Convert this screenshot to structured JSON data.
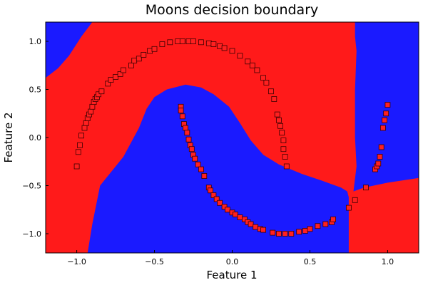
{
  "chart_data": {
    "type": "scatter",
    "title": "Moons decision boundary",
    "xlabel": "Feature 1",
    "ylabel": "Feature 2",
    "xlim": [
      -1.2,
      1.2
    ],
    "ylim": [
      -1.2,
      1.2
    ],
    "xticks": [
      -1.0,
      -0.5,
      0.0,
      0.5,
      1.0
    ],
    "yticks": [
      -1.0,
      -0.5,
      0.0,
      0.5,
      1.0
    ],
    "xtick_labels": [
      "−1.0",
      "−0.5",
      "0.0",
      "0.5",
      "1.0"
    ],
    "ytick_labels": [
      "−1.0",
      "−0.5",
      "0.0",
      "0.5",
      "1.0"
    ],
    "grid": false,
    "legend": "none",
    "region_colors": {
      "class_0": "#1a1aff",
      "class_1": "#ff1a1a"
    },
    "marker_color": "#ff2020",
    "marker_edge": "#3a0000",
    "marker_shape": "square",
    "points": [
      {
        "x": -1.0,
        "y": -0.3
      },
      {
        "x": -0.99,
        "y": -0.15
      },
      {
        "x": -0.98,
        "y": -0.08
      },
      {
        "x": -0.97,
        "y": 0.02
      },
      {
        "x": -0.95,
        "y": 0.1
      },
      {
        "x": -0.94,
        "y": 0.15
      },
      {
        "x": -0.93,
        "y": 0.2
      },
      {
        "x": -0.92,
        "y": 0.24
      },
      {
        "x": -0.91,
        "y": 0.27
      },
      {
        "x": -0.9,
        "y": 0.32
      },
      {
        "x": -0.89,
        "y": 0.37
      },
      {
        "x": -0.88,
        "y": 0.4
      },
      {
        "x": -0.87,
        "y": 0.42
      },
      {
        "x": -0.86,
        "y": 0.45
      },
      {
        "x": -0.84,
        "y": 0.48
      },
      {
        "x": -0.8,
        "y": 0.56
      },
      {
        "x": -0.78,
        "y": 0.6
      },
      {
        "x": -0.75,
        "y": 0.63
      },
      {
        "x": -0.72,
        "y": 0.66
      },
      {
        "x": -0.7,
        "y": 0.7
      },
      {
        "x": -0.65,
        "y": 0.75
      },
      {
        "x": -0.63,
        "y": 0.8
      },
      {
        "x": -0.6,
        "y": 0.82
      },
      {
        "x": -0.57,
        "y": 0.86
      },
      {
        "x": -0.53,
        "y": 0.9
      },
      {
        "x": -0.5,
        "y": 0.92
      },
      {
        "x": -0.45,
        "y": 0.97
      },
      {
        "x": -0.4,
        "y": 0.99
      },
      {
        "x": -0.35,
        "y": 1.0
      },
      {
        "x": -0.32,
        "y": 1.0
      },
      {
        "x": -0.28,
        "y": 1.0
      },
      {
        "x": -0.25,
        "y": 1.0
      },
      {
        "x": -0.2,
        "y": 0.99
      },
      {
        "x": -0.15,
        "y": 0.98
      },
      {
        "x": -0.12,
        "y": 0.97
      },
      {
        "x": -0.08,
        "y": 0.95
      },
      {
        "x": -0.05,
        "y": 0.93
      },
      {
        "x": 0.0,
        "y": 0.9
      },
      {
        "x": 0.05,
        "y": 0.85
      },
      {
        "x": 0.1,
        "y": 0.79
      },
      {
        "x": 0.13,
        "y": 0.75
      },
      {
        "x": 0.16,
        "y": 0.7
      },
      {
        "x": 0.2,
        "y": 0.62
      },
      {
        "x": 0.22,
        "y": 0.57
      },
      {
        "x": 0.25,
        "y": 0.48
      },
      {
        "x": 0.27,
        "y": 0.4
      },
      {
        "x": 0.29,
        "y": 0.24
      },
      {
        "x": 0.3,
        "y": 0.18
      },
      {
        "x": 0.31,
        "y": 0.12
      },
      {
        "x": 0.32,
        "y": 0.05
      },
      {
        "x": 0.33,
        "y": -0.03
      },
      {
        "x": 0.33,
        "y": -0.12
      },
      {
        "x": 0.34,
        "y": -0.2
      },
      {
        "x": 0.35,
        "y": -0.3
      },
      {
        "x": -0.33,
        "y": 0.32
      },
      {
        "x": -0.33,
        "y": 0.28
      },
      {
        "x": -0.32,
        "y": 0.22
      },
      {
        "x": -0.31,
        "y": 0.14
      },
      {
        "x": -0.3,
        "y": 0.1
      },
      {
        "x": -0.29,
        "y": 0.05
      },
      {
        "x": -0.28,
        "y": -0.02
      },
      {
        "x": -0.27,
        "y": -0.08
      },
      {
        "x": -0.26,
        "y": -0.12
      },
      {
        "x": -0.25,
        "y": -0.18
      },
      {
        "x": -0.24,
        "y": -0.22
      },
      {
        "x": -0.22,
        "y": -0.28
      },
      {
        "x": -0.2,
        "y": -0.33
      },
      {
        "x": -0.18,
        "y": -0.4
      },
      {
        "x": -0.15,
        "y": -0.52
      },
      {
        "x": -0.14,
        "y": -0.55
      },
      {
        "x": -0.12,
        "y": -0.6
      },
      {
        "x": -0.1,
        "y": -0.64
      },
      {
        "x": -0.08,
        "y": -0.68
      },
      {
        "x": -0.05,
        "y": -0.72
      },
      {
        "x": -0.03,
        "y": -0.75
      },
      {
        "x": 0.0,
        "y": -0.78
      },
      {
        "x": 0.02,
        "y": -0.8
      },
      {
        "x": 0.05,
        "y": -0.83
      },
      {
        "x": 0.08,
        "y": -0.85
      },
      {
        "x": 0.1,
        "y": -0.88
      },
      {
        "x": 0.12,
        "y": -0.9
      },
      {
        "x": 0.15,
        "y": -0.93
      },
      {
        "x": 0.18,
        "y": -0.95
      },
      {
        "x": 0.2,
        "y": -0.96
      },
      {
        "x": 0.26,
        "y": -0.99
      },
      {
        "x": 0.3,
        "y": -1.0
      },
      {
        "x": 0.34,
        "y": -1.0
      },
      {
        "x": 0.38,
        "y": -1.0
      },
      {
        "x": 0.43,
        "y": -0.98
      },
      {
        "x": 0.47,
        "y": -0.97
      },
      {
        "x": 0.5,
        "y": -0.95
      },
      {
        "x": 0.55,
        "y": -0.92
      },
      {
        "x": 0.6,
        "y": -0.9
      },
      {
        "x": 0.64,
        "y": -0.88
      },
      {
        "x": 0.65,
        "y": -0.85
      },
      {
        "x": 0.75,
        "y": -0.73
      },
      {
        "x": 0.79,
        "y": -0.65
      },
      {
        "x": 0.86,
        "y": -0.52
      },
      {
        "x": 0.92,
        "y": -0.33
      },
      {
        "x": 0.93,
        "y": -0.3
      },
      {
        "x": 0.94,
        "y": -0.27
      },
      {
        "x": 0.95,
        "y": -0.2
      },
      {
        "x": 0.96,
        "y": -0.1
      },
      {
        "x": 0.97,
        "y": 0.1
      },
      {
        "x": 0.98,
        "y": 0.18
      },
      {
        "x": 0.99,
        "y": 0.25
      },
      {
        "x": 1.0,
        "y": 0.34
      }
    ]
  }
}
